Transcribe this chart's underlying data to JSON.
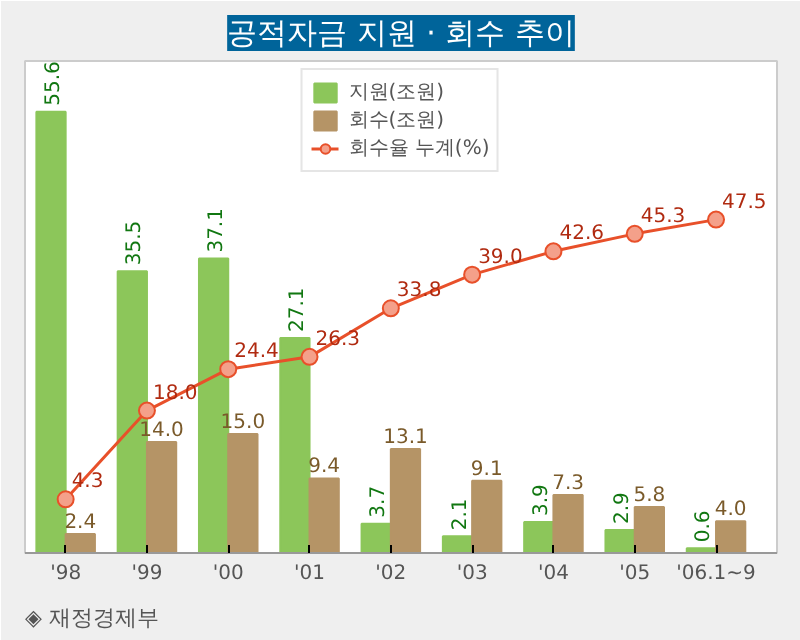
{
  "chart_data": {
    "type": "bar",
    "title": "공적자금 지원 · 회수 추이",
    "categories": [
      "'98",
      "'99",
      "'00",
      "'01",
      "'02",
      "'03",
      "'04",
      "'05",
      "'06.1~9"
    ],
    "series": [
      {
        "name": "지원(조원)",
        "color": "#8cc65a",
        "values": [
          55.6,
          35.5,
          37.1,
          27.1,
          3.7,
          2.1,
          3.9,
          2.9,
          0.6
        ],
        "value_labels": [
          "55.6",
          "35.5",
          "37.1",
          "27.1",
          "3.7",
          "2.1",
          "3.9",
          "2.9",
          "0.6"
        ]
      },
      {
        "name": "회수(조원)",
        "color": "#b59466",
        "values": [
          2.4,
          14.0,
          15.0,
          9.4,
          13.1,
          9.1,
          7.3,
          5.8,
          4.0
        ],
        "value_labels": [
          "2.4",
          "14.0",
          "15.0",
          "9.4",
          "13.1",
          "9.1",
          "7.3",
          "5.8",
          "4.0"
        ]
      },
      {
        "name": "회수율 누계(%)",
        "type": "line",
        "axis": "y2",
        "color": "#e8502a",
        "values": [
          4.3,
          18.0,
          24.4,
          26.3,
          33.8,
          39.0,
          42.6,
          45.3,
          47.5
        ],
        "value_labels": [
          "4.3",
          "18.0",
          "24.4",
          "26.3",
          "33.8",
          "39.0",
          "42.6",
          "45.3",
          "47.5"
        ]
      }
    ],
    "ylim": [
      0,
      62
    ],
    "y2lim": [
      -4,
      72
    ],
    "tick_labels": "x",
    "legend": "top",
    "marker": "circle",
    "grid": false,
    "annotations": [
      "◈ 재정경제부"
    ]
  }
}
